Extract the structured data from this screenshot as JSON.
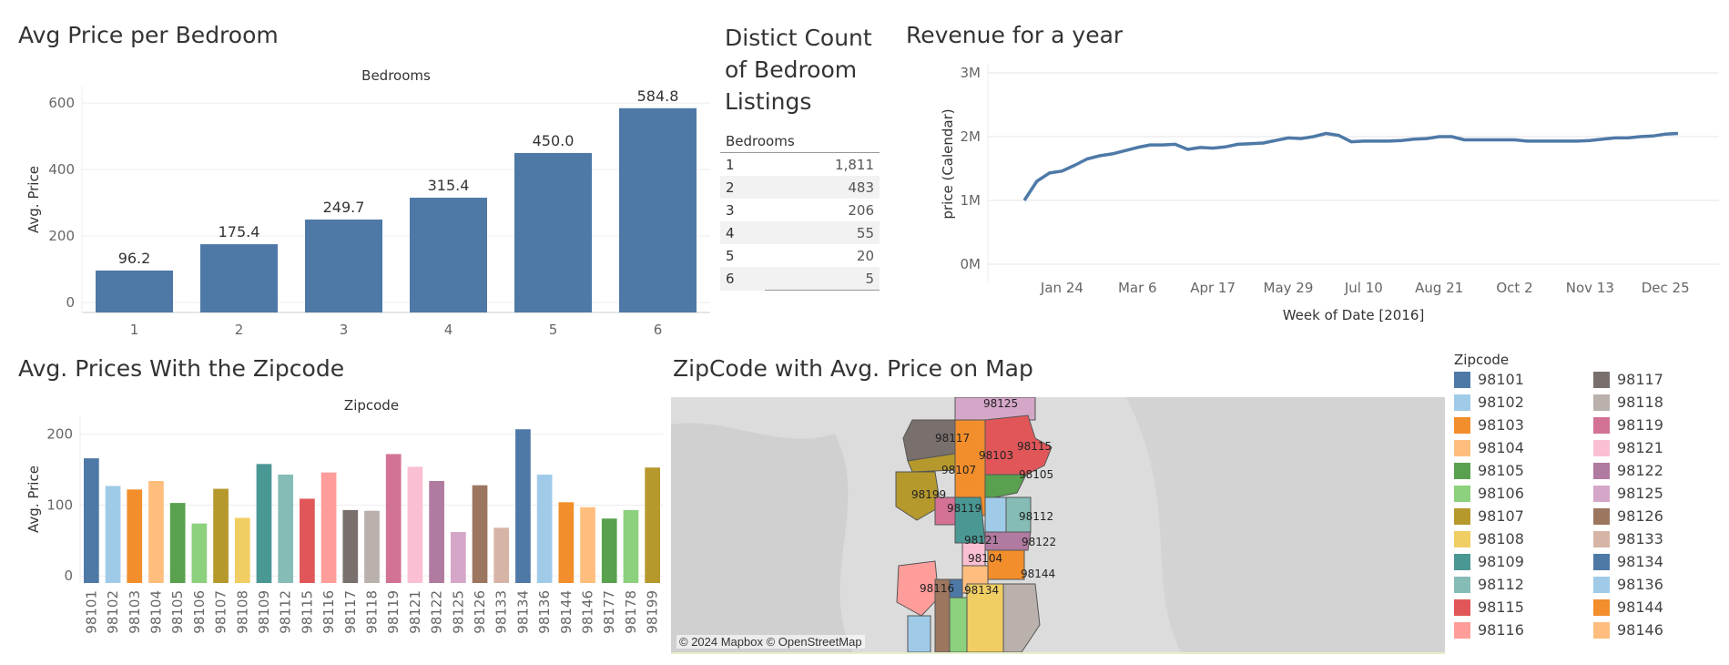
{
  "panels": {
    "bedroom_title": "Avg Price per Bedroom",
    "count_title": [
      "Distict Count",
      "of Bedroom",
      "Listings"
    ],
    "revenue_title": "Revenue for a year",
    "zip_title": "Avg. Prices With the Zipcode",
    "map_title": "ZipCode with Avg. Price on Map",
    "map_credit": "© 2024 Mapbox © OpenStreetMap",
    "legend_title": "Zipcode"
  },
  "colors": {
    "bar": "#4e79a7",
    "line": "#4e79a7"
  },
  "chart_data": [
    {
      "type": "bar",
      "title": "Avg Price per Bedroom",
      "xlabel": "Bedrooms",
      "ylabel": "Avg. Price",
      "categories": [
        "1",
        "2",
        "3",
        "4",
        "5",
        "6"
      ],
      "values": [
        96.2,
        175.4,
        249.7,
        315.4,
        450.0,
        584.8
      ],
      "value_labels": [
        "96.2",
        "175.4",
        "249.7",
        "315.4",
        "450.0",
        "584.8"
      ],
      "ylim": [
        -30,
        650
      ],
      "yticks": [
        0,
        200,
        400,
        600
      ],
      "grid": true
    },
    {
      "type": "table",
      "header": "Bedrooms",
      "rows": [
        [
          "1",
          "1,811"
        ],
        [
          "2",
          "483"
        ],
        [
          "3",
          "206"
        ],
        [
          "4",
          "55"
        ],
        [
          "5",
          "20"
        ],
        [
          "6",
          "5"
        ]
      ]
    },
    {
      "type": "line",
      "title": "Revenue for a year",
      "xlabel": "Week of Date [2016]",
      "ylabel": "price (Calendar)",
      "xticks": [
        "Jan 24",
        "Mar 6",
        "Apr 17",
        "May 29",
        "Jul 10",
        "Aug 21",
        "Oct 2",
        "Nov 13",
        "Dec 25"
      ],
      "yticks": [
        "0M",
        "1M",
        "2M",
        "3M"
      ],
      "ylim": [
        0,
        3000000
      ],
      "x": [
        "2016-01-03",
        "2016-01-10",
        "2016-01-17",
        "2016-01-24",
        "2016-01-31",
        "2016-02-07",
        "2016-02-14",
        "2016-02-21",
        "2016-02-28",
        "2016-03-06",
        "2016-03-13",
        "2016-03-20",
        "2016-03-27",
        "2016-04-03",
        "2016-04-10",
        "2016-04-17",
        "2016-04-24",
        "2016-05-01",
        "2016-05-08",
        "2016-05-15",
        "2016-05-22",
        "2016-05-29",
        "2016-06-05",
        "2016-06-12",
        "2016-06-19",
        "2016-06-26",
        "2016-07-03",
        "2016-07-10",
        "2016-07-17",
        "2016-07-24",
        "2016-07-31",
        "2016-08-07",
        "2016-08-14",
        "2016-08-21",
        "2016-08-28",
        "2016-09-04",
        "2016-09-11",
        "2016-09-18",
        "2016-09-25",
        "2016-10-02",
        "2016-10-09",
        "2016-10-16",
        "2016-10-23",
        "2016-10-30",
        "2016-11-06",
        "2016-11-13",
        "2016-11-20",
        "2016-11-27",
        "2016-12-04",
        "2016-12-11",
        "2016-12-18",
        "2016-12-25",
        "2017-01-01"
      ],
      "values": [
        1000000,
        1300000,
        1430000,
        1460000,
        1550000,
        1650000,
        1700000,
        1730000,
        1780000,
        1830000,
        1870000,
        1870000,
        1880000,
        1800000,
        1830000,
        1820000,
        1840000,
        1880000,
        1890000,
        1900000,
        1940000,
        1980000,
        1970000,
        2000000,
        2050000,
        2020000,
        1920000,
        1930000,
        1930000,
        1930000,
        1940000,
        1960000,
        1970000,
        2000000,
        2000000,
        1950000,
        1950000,
        1950000,
        1950000,
        1950000,
        1930000,
        1930000,
        1930000,
        1930000,
        1930000,
        1940000,
        1960000,
        1980000,
        1980000,
        2000000,
        2010000,
        2040000,
        2050000
      ],
      "grid": true
    },
    {
      "type": "bar",
      "title": "Avg. Prices With the Zipcode",
      "xlabel": "Zipcode",
      "ylabel": "Avg. Price",
      "categories": [
        "98101",
        "98102",
        "98103",
        "98104",
        "98105",
        "98106",
        "98107",
        "98108",
        "98109",
        "98112",
        "98115",
        "98116",
        "98117",
        "98118",
        "98119",
        "98121",
        "98122",
        "98125",
        "98126",
        "98133",
        "98134",
        "98136",
        "98144",
        "98146",
        "98177",
        "98178",
        "98199"
      ],
      "values": [
        166,
        127,
        122,
        134,
        103,
        74,
        123,
        82,
        158,
        143,
        109,
        146,
        93,
        92,
        172,
        154,
        134,
        62,
        128,
        68,
        207,
        143,
        104,
        97,
        81,
        93,
        153
      ],
      "colors": [
        "#4e79a7",
        "#a0cbe8",
        "#f28e2b",
        "#ffbe7d",
        "#59a14f",
        "#8cd17d",
        "#b6992d",
        "#f1ce63",
        "#499894",
        "#86bcb6",
        "#e15759",
        "#ff9d9a",
        "#79706e",
        "#bab0ac",
        "#d37295",
        "#fabfd2",
        "#b07aa1",
        "#d4a6c8",
        "#9d7660",
        "#d7b5a6",
        "#4e79a7",
        "#a0cbe8",
        "#f28e2b",
        "#ffbe7d",
        "#59a14f",
        "#8cd17d",
        "#b6992d"
      ],
      "ylim": [
        -10,
        215
      ],
      "yticks": [
        0,
        100,
        200
      ],
      "grid": true
    }
  ],
  "map_labels": [
    "98125",
    "98117",
    "98103",
    "98115",
    "98107",
    "98105",
    "98199",
    "98119",
    "98112",
    "98121",
    "98122",
    "98104",
    "98144",
    "98116",
    "98134"
  ],
  "legend": {
    "col1": [
      {
        "label": "98101",
        "color": "#4e79a7"
      },
      {
        "label": "98102",
        "color": "#a0cbe8"
      },
      {
        "label": "98103",
        "color": "#f28e2b"
      },
      {
        "label": "98104",
        "color": "#ffbe7d"
      },
      {
        "label": "98105",
        "color": "#59a14f"
      },
      {
        "label": "98106",
        "color": "#8cd17d"
      },
      {
        "label": "98107",
        "color": "#b6992d"
      },
      {
        "label": "98108",
        "color": "#f1ce63"
      },
      {
        "label": "98109",
        "color": "#499894"
      },
      {
        "label": "98112",
        "color": "#86bcb6"
      },
      {
        "label": "98115",
        "color": "#e15759"
      },
      {
        "label": "98116",
        "color": "#ff9d9a"
      }
    ],
    "col2": [
      {
        "label": "98117",
        "color": "#79706e"
      },
      {
        "label": "98118",
        "color": "#bab0ac"
      },
      {
        "label": "98119",
        "color": "#d37295"
      },
      {
        "label": "98121",
        "color": "#fabfd2"
      },
      {
        "label": "98122",
        "color": "#b07aa1"
      },
      {
        "label": "98125",
        "color": "#d4a6c8"
      },
      {
        "label": "98126",
        "color": "#9d7660"
      },
      {
        "label": "98133",
        "color": "#d7b5a6"
      },
      {
        "label": "98134",
        "color": "#4e79a7"
      },
      {
        "label": "98136",
        "color": "#a0cbe8"
      },
      {
        "label": "98144",
        "color": "#f28e2b"
      },
      {
        "label": "98146",
        "color": "#ffbe7d"
      }
    ]
  }
}
